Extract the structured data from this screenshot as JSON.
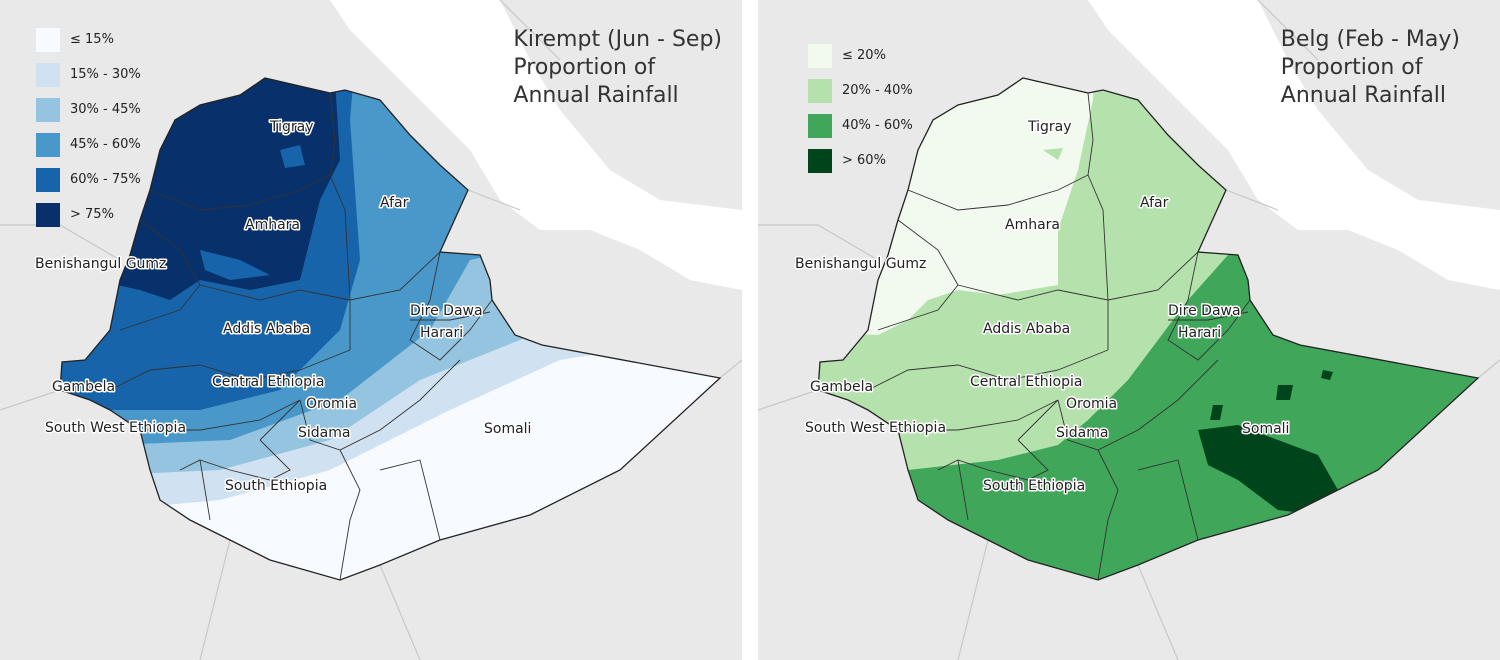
{
  "maps": [
    {
      "title_lines": [
        "Kirempt (Jun - Sep)",
        "Proportion of",
        "Annual Rainfall"
      ],
      "legend": [
        {
          "label": "≤ 15%",
          "color": "#f7fbff"
        },
        {
          "label": "15% - 30%",
          "color": "#d0e1f2"
        },
        {
          "label": "30% - 45%",
          "color": "#94c4df"
        },
        {
          "label": "45% - 60%",
          "color": "#4a98c9"
        },
        {
          "label": "60% - 75%",
          "color": "#1764ab"
        },
        {
          "label": "> 75%",
          "color": "#08306b"
        }
      ]
    },
    {
      "title_lines": [
        "Belg (Feb - May)",
        "Proportion of",
        "Annual Rainfall"
      ],
      "legend": [
        {
          "label": "≤ 20%",
          "color": "#f2f9ee"
        },
        {
          "label": "20% - 40%",
          "color": "#b5e1ad"
        },
        {
          "label": "40% - 60%",
          "color": "#3fa65a"
        },
        {
          "label": "> 60%",
          "color": "#00441b"
        }
      ]
    }
  ],
  "regions": {
    "tigray": "Tigray",
    "afar": "Afar",
    "amhara": "Amhara",
    "benishangul": "Benishangul Gumz",
    "addis": "Addis Ababa",
    "diredawa": "Dire Dawa",
    "harari": "Harari",
    "gambela": "Gambela",
    "central": "Central Ethiopia",
    "oromia": "Oromia",
    "southwest": "South West Ethiopia",
    "sidama": "Sidama",
    "somali": "Somali",
    "south": "South Ethiopia"
  }
}
